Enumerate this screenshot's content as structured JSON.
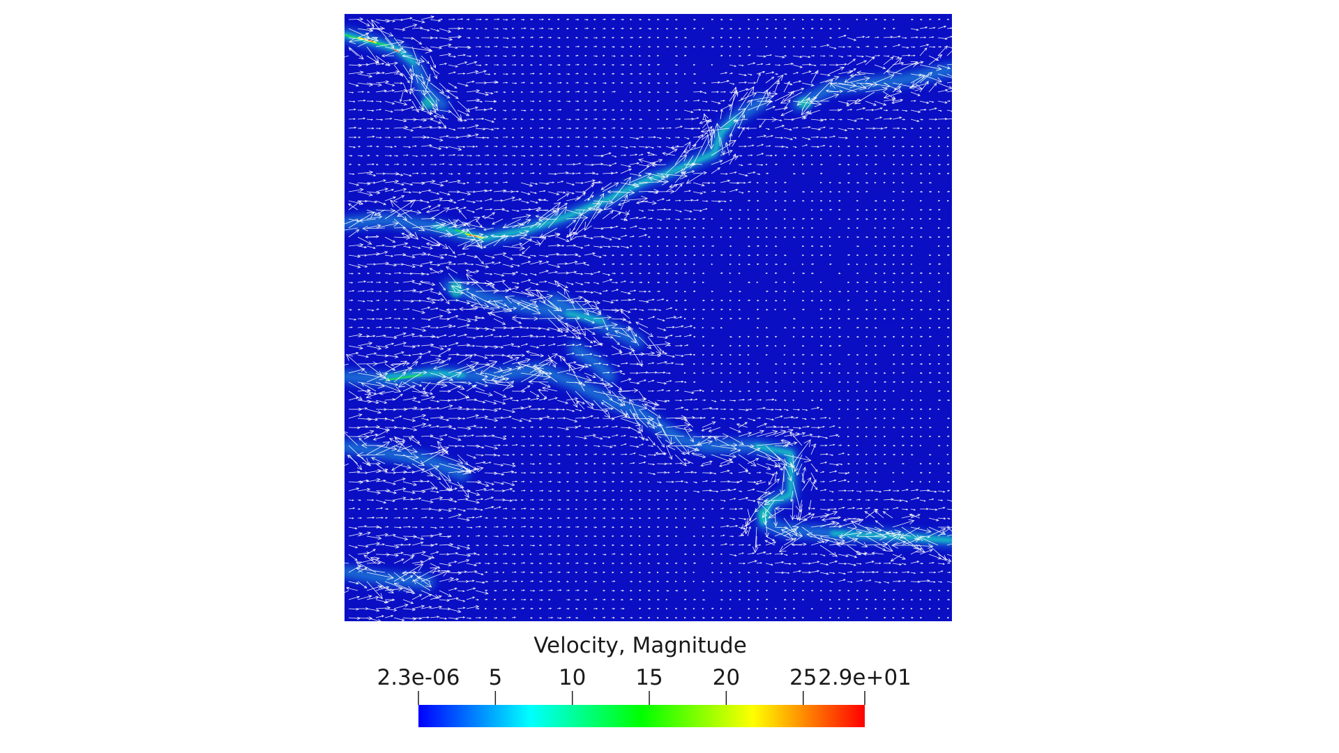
{
  "colors": {
    "background": "#ffffff",
    "field_base": "#0a0fc4",
    "arrow": "#ffffff",
    "colormap": [
      "#0000ff",
      "#00ffff",
      "#00ff00",
      "#ffff00",
      "#ff0000"
    ]
  },
  "colorbar": {
    "title": "Velocity,  Magnitude",
    "range": [
      2.3e-06,
      29
    ],
    "min_label": "2.3e-06",
    "max_label": "2.9e+01",
    "ticks": [
      {
        "value": 5,
        "label": "5"
      },
      {
        "value": 10,
        "label": "10"
      },
      {
        "value": 15,
        "label": "15"
      },
      {
        "value": 20,
        "label": "20"
      },
      {
        "value": 25,
        "label": "25"
      }
    ]
  },
  "glyphs": {
    "type": "arrow",
    "description_name": "velocity-vectors"
  }
}
